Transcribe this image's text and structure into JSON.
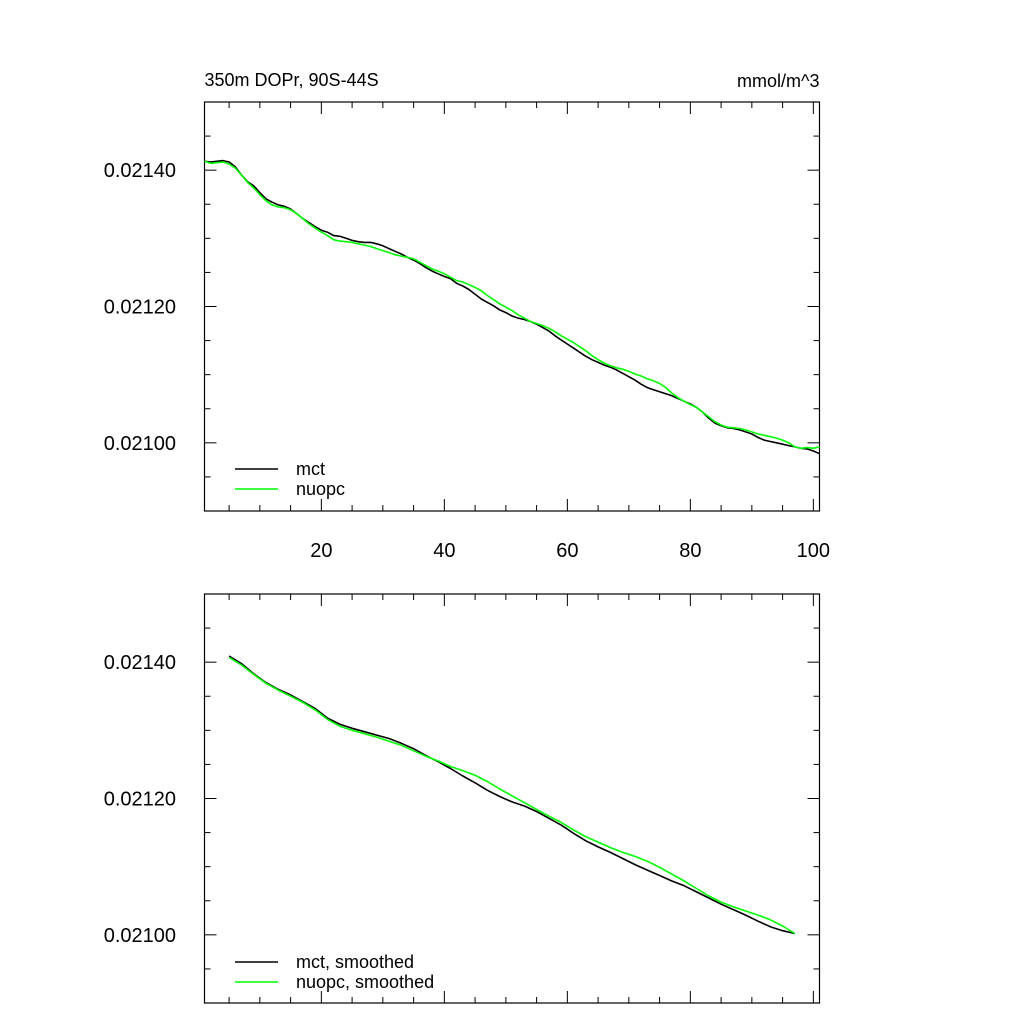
{
  "chart_data": [
    {
      "type": "line",
      "title": "350m DOPr, 90S-44S",
      "units": "mmol/m^3",
      "xlabel": "",
      "ylabel": "",
      "xlim": [
        1,
        101
      ],
      "ylim": [
        0.0209,
        0.0215
      ],
      "x_ticks": [
        20,
        40,
        60,
        80,
        100
      ],
      "x_tick_labels": [
        "20",
        "40",
        "60",
        "80",
        "100"
      ],
      "y_ticks": [
        0.0214,
        0.0212,
        0.021
      ],
      "y_tick_labels": [
        "0.02140",
        "0.02120",
        "0.02100"
      ],
      "legend": "bottom-left",
      "grid": false,
      "series": [
        {
          "name": "mct",
          "color": "#000000",
          "x": [
            1,
            2,
            3,
            4,
            5,
            6,
            7,
            8,
            9,
            10,
            11,
            12,
            13,
            14,
            15,
            16,
            17,
            18,
            19,
            20,
            21,
            22,
            23,
            24,
            25,
            26,
            27,
            28,
            29,
            30,
            31,
            32,
            33,
            34,
            35,
            36,
            37,
            38,
            39,
            40,
            41,
            42,
            43,
            44,
            45,
            46,
            47,
            48,
            49,
            50,
            51,
            52,
            53,
            54,
            55,
            56,
            57,
            58,
            59,
            60,
            61,
            62,
            63,
            64,
            65,
            66,
            67,
            68,
            69,
            70,
            71,
            72,
            73,
            74,
            75,
            76,
            77,
            78,
            79,
            80,
            81,
            82,
            83,
            84,
            85,
            86,
            87,
            88,
            89,
            90,
            91,
            92,
            93,
            94,
            95,
            96,
            97,
            98,
            99,
            100,
            101
          ],
          "values": [
            0.021413,
            0.021412,
            0.021413,
            0.021414,
            0.021412,
            0.021405,
            0.021393,
            0.021383,
            0.021377,
            0.021367,
            0.021358,
            0.021353,
            0.021349,
            0.021347,
            0.021343,
            0.021336,
            0.021329,
            0.021323,
            0.021317,
            0.021312,
            0.021309,
            0.021304,
            0.021303,
            0.0213,
            0.021297,
            0.021295,
            0.021294,
            0.021294,
            0.021292,
            0.021289,
            0.021285,
            0.021281,
            0.021277,
            0.021272,
            0.021268,
            0.021263,
            0.021257,
            0.021252,
            0.021248,
            0.021244,
            0.021241,
            0.021234,
            0.02123,
            0.021225,
            0.021218,
            0.021211,
            0.021206,
            0.021201,
            0.021195,
            0.021191,
            0.021186,
            0.021183,
            0.021181,
            0.021178,
            0.021174,
            0.021169,
            0.021164,
            0.021157,
            0.021151,
            0.021145,
            0.021139,
            0.021133,
            0.021127,
            0.021122,
            0.021118,
            0.021114,
            0.021111,
            0.021107,
            0.021102,
            0.021097,
            0.021092,
            0.021086,
            0.021081,
            0.021078,
            0.021075,
            0.021072,
            0.021069,
            0.021065,
            0.021061,
            0.021057,
            0.021052,
            0.021045,
            0.021036,
            0.021029,
            0.021025,
            0.021022,
            0.021021,
            0.021019,
            0.021016,
            0.021013,
            0.021008,
            0.021004,
            0.021002,
            0.021,
            0.020998,
            0.020996,
            0.020994,
            0.020992,
            0.020991,
            0.020988,
            0.020984
          ]
        },
        {
          "name": "nuopc",
          "color": "#00ff00",
          "x": [
            1,
            2,
            3,
            4,
            5,
            6,
            7,
            8,
            9,
            10,
            11,
            12,
            13,
            14,
            15,
            16,
            17,
            18,
            19,
            20,
            21,
            22,
            23,
            24,
            25,
            26,
            27,
            28,
            29,
            30,
            31,
            32,
            33,
            34,
            35,
            36,
            37,
            38,
            39,
            40,
            41,
            42,
            43,
            44,
            45,
            46,
            47,
            48,
            49,
            50,
            51,
            52,
            53,
            54,
            55,
            56,
            57,
            58,
            59,
            60,
            61,
            62,
            63,
            64,
            65,
            66,
            67,
            68,
            69,
            70,
            71,
            72,
            73,
            74,
            75,
            76,
            77,
            78,
            79,
            80,
            81,
            82,
            83,
            84,
            85,
            86,
            87,
            88,
            89,
            90,
            91,
            92,
            93,
            94,
            95,
            96,
            97,
            98,
            99,
            100,
            101
          ],
          "values": [
            0.021413,
            0.02141,
            0.021411,
            0.021412,
            0.021409,
            0.021403,
            0.021393,
            0.021382,
            0.021374,
            0.021364,
            0.021355,
            0.021349,
            0.021346,
            0.021345,
            0.021342,
            0.021336,
            0.021329,
            0.021321,
            0.021315,
            0.021309,
            0.021304,
            0.021298,
            0.021296,
            0.021295,
            0.021294,
            0.021292,
            0.02129,
            0.021288,
            0.021285,
            0.021282,
            0.021279,
            0.021276,
            0.021274,
            0.021272,
            0.02127,
            0.021265,
            0.02126,
            0.021255,
            0.021252,
            0.021248,
            0.021243,
            0.021238,
            0.021236,
            0.021232,
            0.021228,
            0.021223,
            0.021216,
            0.02121,
            0.021204,
            0.021199,
            0.021194,
            0.021188,
            0.021183,
            0.021178,
            0.021175,
            0.021172,
            0.021168,
            0.021163,
            0.021157,
            0.021152,
            0.021147,
            0.021141,
            0.021135,
            0.021128,
            0.021122,
            0.021117,
            0.021113,
            0.02111,
            0.021108,
            0.021105,
            0.021101,
            0.021098,
            0.021094,
            0.021091,
            0.021087,
            0.021081,
            0.021073,
            0.021066,
            0.021061,
            0.021056,
            0.021052,
            0.021045,
            0.021038,
            0.021031,
            0.021026,
            0.021023,
            0.021022,
            0.021021,
            0.021019,
            0.021016,
            0.021013,
            0.021011,
            0.021009,
            0.021007,
            0.021004,
            0.021,
            0.020994,
            0.020992,
            0.020993,
            0.020992,
            0.020994
          ]
        }
      ]
    },
    {
      "type": "line",
      "title": "",
      "xlabel": "",
      "ylabel": "",
      "xlim": [
        1,
        101
      ],
      "ylim": [
        0.0209,
        0.0215
      ],
      "x_ticks": [
        20,
        40,
        60,
        80,
        100
      ],
      "x_tick_labels": [],
      "y_ticks": [
        0.0214,
        0.0212,
        0.021
      ],
      "y_tick_labels": [
        "0.02140",
        "0.02120",
        "0.02100"
      ],
      "legend": "bottom-left",
      "grid": false,
      "series": [
        {
          "name": "mct, smoothed",
          "color": "#000000",
          "x": [
            5,
            7,
            9,
            11,
            13,
            15,
            17,
            19,
            21,
            23,
            25,
            27,
            29,
            31,
            33,
            35,
            37,
            39,
            41,
            43,
            45,
            47,
            49,
            51,
            53,
            55,
            57,
            59,
            61,
            63,
            65,
            67,
            69,
            71,
            73,
            75,
            77,
            79,
            81,
            83,
            85,
            87,
            89,
            91,
            93,
            95,
            97
          ],
          "values": [
            0.021409,
            0.021398,
            0.021383,
            0.02137,
            0.02136,
            0.021352,
            0.021342,
            0.021332,
            0.021318,
            0.021309,
            0.021303,
            0.021298,
            0.021293,
            0.021288,
            0.021281,
            0.021273,
            0.021263,
            0.021254,
            0.021244,
            0.021233,
            0.021223,
            0.021212,
            0.021203,
            0.021195,
            0.021189,
            0.021181,
            0.021171,
            0.021161,
            0.021149,
            0.021138,
            0.021129,
            0.021121,
            0.021112,
            0.021103,
            0.021095,
            0.021087,
            0.021079,
            0.021072,
            0.021063,
            0.021054,
            0.021045,
            0.021037,
            0.021029,
            0.02102,
            0.021012,
            0.021006,
            0.021002
          ]
        },
        {
          "name": "nuopc, smoothed",
          "color": "#00ff00",
          "x": [
            5,
            7,
            9,
            11,
            13,
            15,
            17,
            19,
            21,
            23,
            25,
            27,
            29,
            31,
            33,
            35,
            37,
            39,
            41,
            43,
            45,
            47,
            49,
            51,
            53,
            55,
            57,
            59,
            61,
            63,
            65,
            67,
            69,
            71,
            73,
            75,
            77,
            79,
            81,
            83,
            85,
            87,
            89,
            91,
            93,
            95,
            97
          ],
          "values": [
            0.021407,
            0.021396,
            0.021382,
            0.021369,
            0.021359,
            0.02135,
            0.021341,
            0.02133,
            0.021316,
            0.021306,
            0.0213,
            0.021295,
            0.02129,
            0.021284,
            0.021278,
            0.02127,
            0.021262,
            0.021255,
            0.021247,
            0.021241,
            0.021234,
            0.021225,
            0.021214,
            0.021204,
            0.021194,
            0.021184,
            0.021174,
            0.021165,
            0.021154,
            0.021144,
            0.021136,
            0.021128,
            0.021121,
            0.021115,
            0.021108,
            0.021099,
            0.021089,
            0.021079,
            0.021068,
            0.021057,
            0.021048,
            0.021041,
            0.021035,
            0.021029,
            0.021022,
            0.021013,
            0.021002
          ]
        }
      ]
    }
  ]
}
